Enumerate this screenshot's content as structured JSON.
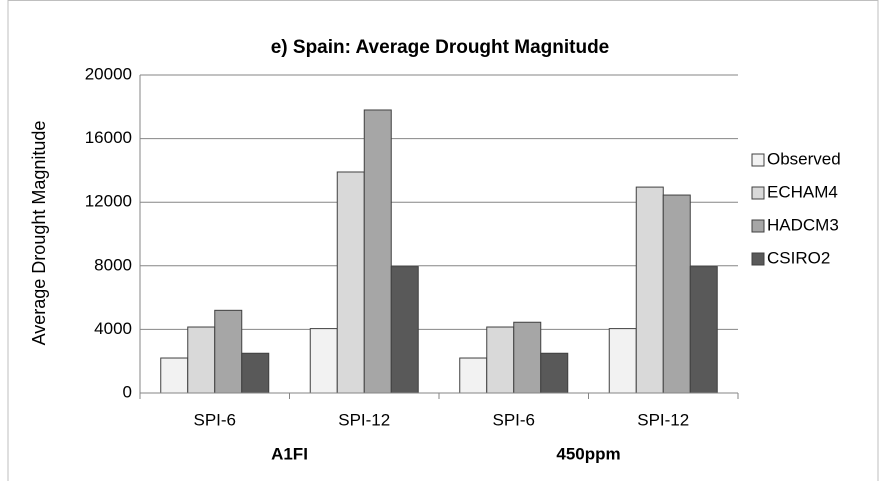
{
  "chart_data": {
    "type": "bar",
    "title": "e) Spain: Average Drought Magnitude",
    "y_label": "Average Drought Magnitude",
    "categories": [
      "SPI-6",
      "SPI-12",
      "SPI-6",
      "SPI-12"
    ],
    "groups": [
      "A1FI",
      "A1FI",
      "450ppm",
      "450ppm"
    ],
    "series": [
      {
        "name": "Observed",
        "color": "#f2f2f2",
        "values": [
          2200,
          4050,
          2200,
          4050
        ]
      },
      {
        "name": "ECHAM4",
        "color": "#d9d9d9",
        "values": [
          4150,
          13900,
          4150,
          12950
        ]
      },
      {
        "name": "HADCM3",
        "color": "#a6a6a6",
        "values": [
          5200,
          17800,
          4450,
          12450
        ]
      },
      {
        "name": "CSIRO2",
        "color": "#595959",
        "values": [
          2500,
          7950,
          2500,
          7950
        ]
      }
    ],
    "ylim": [
      0,
      20000
    ],
    "yticks": [
      0,
      4000,
      8000,
      12000,
      16000,
      20000
    ],
    "grid": true,
    "legend": "right"
  }
}
